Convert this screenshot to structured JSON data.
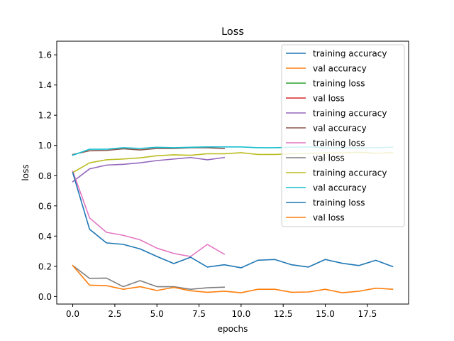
{
  "chart_data": {
    "type": "line",
    "title": "Loss",
    "xlabel": "epochs",
    "ylabel": "loss",
    "xlim": [
      -0.95,
      19.95
    ],
    "ylim": [
      -0.05,
      1.69
    ],
    "xticks": [
      0.0,
      2.5,
      5.0,
      7.5,
      10.0,
      12.5,
      15.0,
      17.5
    ],
    "xtick_labels": [
      "0.0",
      "2.5",
      "5.0",
      "7.5",
      "10.0",
      "12.5",
      "15.0",
      "17.5"
    ],
    "yticks": [
      0.0,
      0.2,
      0.4,
      0.6,
      0.8,
      1.0,
      1.2,
      1.4,
      1.6
    ],
    "ytick_labels": [
      "0.0",
      "0.2",
      "0.4",
      "0.6",
      "0.8",
      "1.0",
      "1.2",
      "1.4",
      "1.6"
    ],
    "grid": false,
    "legend_position": "top-right",
    "series": [
      {
        "name": "training accuracy",
        "color": "#1f77b4",
        "x": [],
        "values": []
      },
      {
        "name": "val accuracy",
        "color": "#ff7f0e",
        "x": [],
        "values": []
      },
      {
        "name": "training loss",
        "color": "#2ca02c",
        "x": [],
        "values": []
      },
      {
        "name": "val loss",
        "color": "#d62728",
        "x": [],
        "values": []
      },
      {
        "name": "training accuracy",
        "color": "#9467bd",
        "x": [
          0,
          1,
          2,
          3,
          4,
          5,
          6,
          7,
          8,
          9
        ],
        "values": [
          0.76,
          0.845,
          0.87,
          0.875,
          0.885,
          0.9,
          0.91,
          0.92,
          0.905,
          0.92
        ]
      },
      {
        "name": "val accuracy",
        "color": "#8c564b",
        "x": [
          0,
          1,
          2,
          3,
          4,
          5,
          6,
          7,
          8,
          9
        ],
        "values": [
          0.94,
          0.965,
          0.967,
          0.978,
          0.97,
          0.98,
          0.98,
          0.985,
          0.985,
          0.98
        ]
      },
      {
        "name": "training loss",
        "color": "#e377c2",
        "x": [
          0,
          1,
          2,
          3,
          4,
          5,
          6,
          7,
          8,
          9
        ],
        "values": [
          0.83,
          0.52,
          0.425,
          0.405,
          0.375,
          0.32,
          0.285,
          0.265,
          0.345,
          0.28
        ]
      },
      {
        "name": "val loss",
        "color": "#7f7f7f",
        "x": [
          0,
          1,
          2,
          3,
          4,
          5,
          6,
          7,
          8,
          9
        ],
        "values": [
          0.205,
          0.12,
          0.122,
          0.065,
          0.105,
          0.065,
          0.065,
          0.048,
          0.058,
          0.062
        ]
      },
      {
        "name": "training accuracy",
        "color": "#bcbd22",
        "x": [
          0,
          1,
          2,
          3,
          4,
          5,
          6,
          7,
          8,
          9,
          10,
          11,
          12,
          13,
          14,
          15,
          16,
          17,
          18,
          19
        ],
        "values": [
          0.82,
          0.885,
          0.905,
          0.91,
          0.918,
          0.932,
          0.938,
          0.935,
          0.945,
          0.945,
          0.952,
          0.94,
          0.94,
          0.945,
          0.948,
          0.95,
          0.95,
          0.955,
          0.948,
          0.952
        ]
      },
      {
        "name": "val accuracy",
        "color": "#17becf",
        "x": [
          0,
          1,
          2,
          3,
          4,
          5,
          6,
          7,
          8,
          9,
          10,
          11,
          12,
          13,
          14,
          15,
          16,
          17,
          18,
          19
        ],
        "values": [
          0.935,
          0.975,
          0.975,
          0.985,
          0.98,
          0.988,
          0.985,
          0.988,
          0.99,
          0.99,
          0.99,
          0.985,
          0.985,
          0.988,
          0.99,
          0.985,
          0.985,
          0.985,
          0.985,
          0.988
        ]
      },
      {
        "name": "training loss",
        "color": "#1f77b4",
        "x": [
          0,
          1,
          2,
          3,
          4,
          5,
          6,
          7,
          8,
          9,
          10,
          11,
          12,
          13,
          14,
          15,
          16,
          17,
          18,
          19
        ],
        "values": [
          0.82,
          0.445,
          0.355,
          0.345,
          0.315,
          0.265,
          0.218,
          0.26,
          0.195,
          0.21,
          0.19,
          0.24,
          0.245,
          0.21,
          0.195,
          0.245,
          0.22,
          0.205,
          0.24,
          0.198
        ]
      },
      {
        "name": "val loss",
        "color": "#ff7f0e",
        "x": [
          0,
          1,
          2,
          3,
          4,
          5,
          6,
          7,
          8,
          9,
          10,
          11,
          12,
          13,
          14,
          15,
          16,
          17,
          18,
          19
        ],
        "values": [
          0.205,
          0.075,
          0.072,
          0.048,
          0.065,
          0.04,
          0.06,
          0.038,
          0.028,
          0.035,
          0.025,
          0.048,
          0.048,
          0.028,
          0.03,
          0.048,
          0.025,
          0.035,
          0.055,
          0.048
        ]
      }
    ]
  }
}
